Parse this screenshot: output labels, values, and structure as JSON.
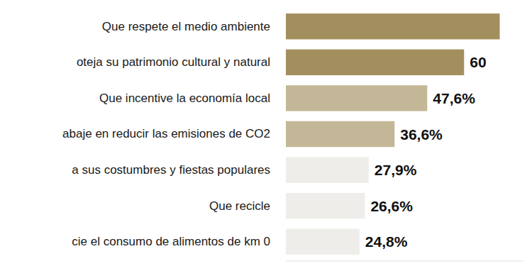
{
  "chart_data": {
    "type": "bar",
    "orientation": "horizontal",
    "categories": [
      "Que respete el medio ambiente",
      "oteja su patrimonio cultural y natural",
      "Que incentive la economía local",
      "abaje en reducir las emisiones de CO2",
      "a sus costumbres y fiestas populares",
      "Que recicle",
      "cie el consumo de alimentos de km 0"
    ],
    "values": [
      72,
      60,
      47.6,
      36.6,
      27.9,
      26.6,
      24.8
    ],
    "value_labels": [
      null,
      "60",
      "47,6%",
      "36,6%",
      "27,9%",
      "26,6%",
      "24,8%"
    ],
    "colors": [
      "#a38f5e",
      "#a38f5e",
      "#c4b797",
      "#c4b797",
      "#efedea",
      "#efedea",
      "#efedea"
    ],
    "xlim": [
      0,
      80
    ],
    "data_labels": true,
    "tick_labels": "y",
    "grid": false
  }
}
